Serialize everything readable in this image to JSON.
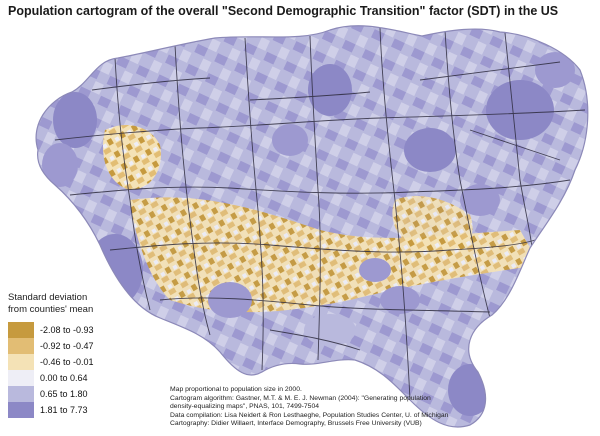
{
  "title": "Population cartogram of the overall \"Second Demographic Transition\" factor (SDT) in the US",
  "legend": {
    "title_lines": [
      "Standard deviation",
      "from counties' mean"
    ],
    "items": [
      {
        "label": "-2.08 to -0.93",
        "color": "#c69a3e"
      },
      {
        "label": "-0.92 to -0.47",
        "color": "#e2bd74"
      },
      {
        "label": "-0.46 to -0.01",
        "color": "#f4e2b6"
      },
      {
        "label": "0.00 to 0.64",
        "color": "#eeeef6"
      },
      {
        "label": "0.65 to 1.80",
        "color": "#b9b9dd"
      },
      {
        "label": "1.81 to 7.73",
        "color": "#8c88c6"
      }
    ]
  },
  "notes": [
    "Map proportional to population size in 2000.",
    "Cartogram algorithm: Gastner, M.T. & M. E. J. Newman (2004): \"Generating population",
    "density-equalizing maps\", PNAS, 101, 7499-7504",
    "Data compilation: Lisa Neidert & Ron Lesthaeghe, Population Studies Center, U. of Michigan",
    "Cartography: Didier Willaert, Interface Demography, Brussels Free University (VUB)"
  ]
}
